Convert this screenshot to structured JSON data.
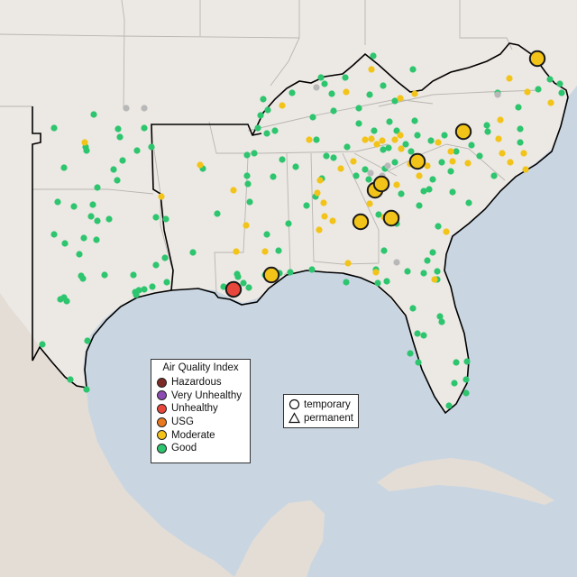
{
  "legend": {
    "title": "Air Quality Index",
    "categories": [
      {
        "label": "Hazardous",
        "color": "#7e2b27"
      },
      {
        "label": "Very Unhealthy",
        "color": "#8d4ab3"
      },
      {
        "label": "Unhealthy",
        "color": "#e8473b"
      },
      {
        "label": "USG",
        "color": "#e8791e"
      },
      {
        "label": "Moderate",
        "color": "#f2c318"
      },
      {
        "label": "Good",
        "color": "#2ec56f"
      }
    ]
  },
  "shape_legend": {
    "temporary": {
      "label": "temporary",
      "shape": "circle"
    },
    "permanent": {
      "label": "permanent",
      "shape": "triangle"
    }
  },
  "no_data_color": "#b8b8b8",
  "map": {
    "region": "Southeastern United States and Gulf of Mexico",
    "monitor_category_counts": {
      "Unhealthy": 1,
      "Moderate": 52,
      "Good": 157,
      "No data": 8
    },
    "large_marker_categories": {
      "Unhealthy": 1,
      "Moderate": 9
    }
  }
}
